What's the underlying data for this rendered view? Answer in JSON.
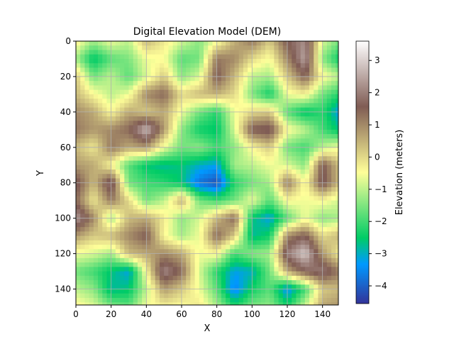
{
  "chart_data": {
    "type": "heatmap",
    "title": "Digital Elevation Model (DEM)",
    "xlabel": "X",
    "ylabel": "Y",
    "xlim": [
      0,
      149
    ],
    "ylim": [
      149,
      0
    ],
    "grid": true,
    "xticks": [
      0,
      20,
      40,
      60,
      80,
      100,
      120,
      140
    ],
    "yticks": [
      0,
      20,
      40,
      60,
      80,
      100,
      120,
      140
    ],
    "colormap": "terrain",
    "colorbar": {
      "label": "Elevation (meters)",
      "min": -4.55,
      "max": 3.6,
      "ticks": [
        -4,
        -3,
        -2,
        -1,
        0,
        1,
        2,
        3
      ]
    },
    "grid_step": 10,
    "grid_x": [
      0,
      10,
      20,
      30,
      40,
      50,
      60,
      70,
      80,
      90,
      100,
      110,
      120,
      130,
      140,
      149
    ],
    "grid_y": [
      0,
      10,
      20,
      30,
      40,
      50,
      60,
      70,
      80,
      90,
      100,
      110,
      120,
      130,
      140,
      149
    ],
    "values": [
      [
        -0.3,
        -1.2,
        -0.6,
        -1.0,
        0.4,
        -0.2,
        -0.8,
        -1.4,
        -0.6,
        0.5,
        1.2,
        0.2,
        1.6,
        2.2,
        -0.8,
        -1.5
      ],
      [
        -1.2,
        -2.6,
        -1.8,
        -1.5,
        -0.6,
        -0.5,
        -1.8,
        -1.6,
        1.2,
        1.0,
        0.0,
        -0.5,
        1.0,
        2.5,
        -1.4,
        -2.4
      ],
      [
        0.2,
        -1.6,
        -1.0,
        -1.8,
        -0.8,
        0.2,
        -1.4,
        -0.8,
        1.6,
        0.4,
        -1.0,
        -1.2,
        0.2,
        1.5,
        -0.4,
        -1.0
      ],
      [
        0.4,
        -0.4,
        -1.0,
        -0.6,
        1.0,
        1.4,
        0.0,
        0.4,
        0.5,
        0.0,
        -1.5,
        -2.4,
        -0.6,
        -0.3,
        -1.6,
        -2.2
      ],
      [
        1.0,
        0.6,
        -0.4,
        0.6,
        0.2,
        0.6,
        -0.6,
        -1.6,
        -2.2,
        -0.6,
        0.0,
        0.2,
        -1.8,
        -2.6,
        -2.2,
        -3.2
      ],
      [
        1.2,
        0.8,
        1.0,
        1.4,
        2.8,
        0.8,
        -1.4,
        -2.4,
        -2.6,
        -0.8,
        1.6,
        1.8,
        -0.4,
        -1.0,
        -2.0,
        -2.6
      ],
      [
        0.4,
        -0.2,
        1.2,
        0.6,
        0.8,
        -0.6,
        -1.6,
        -1.4,
        -2.0,
        -1.4,
        -0.4,
        0.2,
        -1.6,
        -2.0,
        -1.0,
        -0.6
      ],
      [
        0.8,
        0.6,
        -0.4,
        -1.8,
        -2.6,
        -2.8,
        -2.6,
        -3.0,
        -3.2,
        -1.2,
        -1.0,
        -0.6,
        -0.8,
        -1.4,
        1.6,
        0.4
      ],
      [
        1.8,
        0.4,
        2.0,
        -1.6,
        -2.0,
        -2.2,
        -2.6,
        -3.8,
        -4.2,
        -2.2,
        -1.6,
        -1.2,
        1.2,
        -0.5,
        1.8,
        0.4
      ],
      [
        1.4,
        -0.2,
        1.2,
        0.0,
        -1.6,
        -1.0,
        0.6,
        -1.6,
        -2.0,
        -1.6,
        -0.6,
        -1.8,
        -0.4,
        -0.6,
        -0.4,
        -0.8
      ],
      [
        2.4,
        1.0,
        -1.2,
        0.4,
        0.6,
        -0.2,
        -1.4,
        -0.8,
        0.4,
        1.4,
        -2.6,
        -3.2,
        -1.8,
        -0.6,
        -1.4,
        -1.2
      ],
      [
        0.8,
        0.2,
        0.4,
        1.0,
        1.6,
        -0.4,
        -1.2,
        -0.6,
        1.4,
        0.2,
        -2.8,
        -2.4,
        1.0,
        1.6,
        0.0,
        0.4
      ],
      [
        -0.6,
        -0.8,
        -1.2,
        0.4,
        0.6,
        1.0,
        0.6,
        -0.6,
        -0.4,
        -2.0,
        -1.4,
        -1.2,
        2.0,
        3.0,
        0.8,
        -0.2
      ],
      [
        -1.6,
        -2.0,
        -2.6,
        -3.2,
        -0.4,
        2.2,
        1.4,
        -0.8,
        -2.2,
        -3.2,
        -3.0,
        -1.6,
        0.6,
        1.6,
        2.0,
        1.2
      ],
      [
        -1.0,
        -1.4,
        -2.8,
        -2.6,
        -1.0,
        0.8,
        0.2,
        -0.6,
        -1.8,
        -3.6,
        -2.4,
        -1.8,
        -3.4,
        -2.0,
        0.2,
        0.4
      ],
      [
        -0.4,
        -0.8,
        -1.6,
        -1.8,
        -0.6,
        -0.2,
        -0.4,
        -0.2,
        -1.2,
        -2.4,
        -1.6,
        -1.4,
        -2.4,
        -1.0,
        0.6,
        0.8
      ]
    ]
  }
}
